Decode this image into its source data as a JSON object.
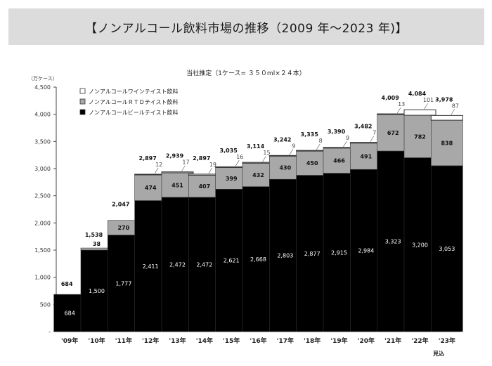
{
  "header": {
    "title": "【ノンアルコール飲料市場の推移（2009 年～2023 年)】"
  },
  "chart_data": {
    "type": "bar",
    "stacked": true,
    "subtitle": "当社推定（1ケース= ３５０ml×２４本）",
    "ylabel": "（万ケース）",
    "ylim": [
      0,
      4500
    ],
    "yticks": [
      "-",
      "500",
      "1,000",
      "1,500",
      "2,000",
      "2,500",
      "3,000",
      "3,500",
      "4,000",
      "4,500"
    ],
    "categories": [
      "'09年",
      "'10年",
      "'11年",
      "'12年",
      "'13年",
      "'14年",
      "'15年",
      "'16年",
      "'17年",
      "'18年",
      "'19年",
      "'20年",
      "'21年",
      "'22年",
      "'23年"
    ],
    "category_note": "見込",
    "series": [
      {
        "name": "ノンアルコールビールテイスト飲料",
        "color": "#000000",
        "values": [
          684,
          1500,
          1777,
          2411,
          2472,
          2472,
          2621,
          2668,
          2803,
          2877,
          2915,
          2984,
          3323,
          3200,
          3053
        ],
        "labels": [
          "684",
          "1,500",
          "1,777",
          "2,411",
          "2,472",
          "2,472",
          "2,621",
          "2,668",
          "2,803",
          "2,877",
          "2,915",
          "2,984",
          "3,323",
          "3,200",
          "3,053"
        ]
      },
      {
        "name": "ノンアルコールＲＴＤテイスト飲料",
        "color": "#a8a8a8",
        "values": [
          0,
          38,
          270,
          474,
          451,
          407,
          399,
          432,
          430,
          450,
          466,
          491,
          672,
          782,
          838
        ],
        "labels": [
          "",
          "38",
          "270",
          "474",
          "451",
          "407",
          "399",
          "432",
          "430",
          "450",
          "466",
          "491",
          "672",
          "782",
          "838"
        ]
      },
      {
        "name": "ノンアルコールワインテイスト飲料",
        "color": "#ffffff",
        "values": [
          0,
          0,
          0,
          12,
          17,
          19,
          16,
          15,
          9,
          8,
          9,
          7,
          13,
          101,
          87
        ],
        "labels": [
          "",
          "",
          "",
          "12",
          "17",
          "19",
          "16",
          "15",
          "9",
          "8",
          "9",
          "7",
          "13",
          "101",
          "87"
        ]
      }
    ],
    "totals": [
      "684",
      "1,538",
      "2,047",
      "2,897",
      "2,939",
      "2,897",
      "3,035",
      "3,114",
      "3,242",
      "3,335",
      "3,390",
      "3,482",
      "4,009",
      "4,084",
      "3,978"
    ],
    "legend": [
      "ノンアルコールワインテイスト飲料",
      "ノンアルコールＲＴＤテイスト飲料",
      "ノンアルコールビールテイスト飲料"
    ]
  }
}
